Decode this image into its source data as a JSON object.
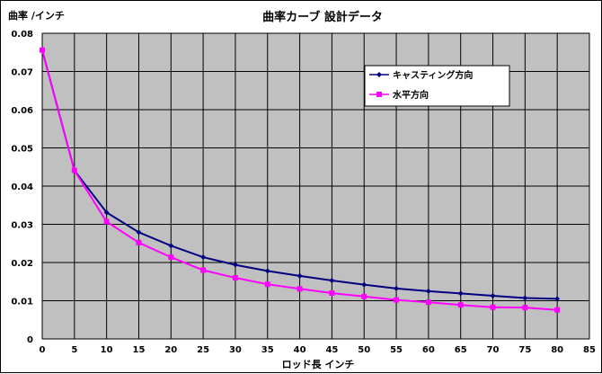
{
  "chart_data": {
    "type": "line",
    "title": "曲率カーブ 設計データ",
    "xlabel": "ロッド長 インチ",
    "ylabel": "曲率 /インチ",
    "xlim": [
      0,
      85
    ],
    "ylim": [
      0,
      0.08
    ],
    "x_ticks": [
      "0",
      "5",
      "10",
      "15",
      "20",
      "25",
      "30",
      "35",
      "40",
      "45",
      "50",
      "55",
      "60",
      "65",
      "70",
      "75",
      "80",
      "85"
    ],
    "y_ticks": [
      "0",
      "0.01",
      "0.02",
      "0.03",
      "0.04",
      "0.05",
      "0.06",
      "0.07",
      "0.08"
    ],
    "grid": true,
    "legend_position": "top-right",
    "series": [
      {
        "name": "キャスティング方向",
        "color": "#000080",
        "marker": "diamond",
        "points": [
          [
            0,
            0.0756
          ],
          [
            5,
            0.0441
          ],
          [
            10,
            0.0331
          ],
          [
            15,
            0.0279
          ],
          [
            20,
            0.0244
          ],
          [
            25,
            0.0214
          ],
          [
            30,
            0.0194
          ],
          [
            35,
            0.0178
          ],
          [
            40,
            0.0165
          ],
          [
            45,
            0.0153
          ],
          [
            50,
            0.0142
          ],
          [
            55,
            0.0132
          ],
          [
            60,
            0.0125
          ],
          [
            65,
            0.0119
          ],
          [
            70,
            0.0113
          ],
          [
            75,
            0.0107
          ],
          [
            80,
            0.0105
          ]
        ]
      },
      {
        "name": "水平方向",
        "color": "#ff00ff",
        "marker": "square",
        "points": [
          [
            0,
            0.0756
          ],
          [
            5,
            0.0441
          ],
          [
            10,
            0.0307
          ],
          [
            15,
            0.0252
          ],
          [
            20,
            0.0214
          ],
          [
            25,
            0.018
          ],
          [
            30,
            0.016
          ],
          [
            35,
            0.0143
          ],
          [
            40,
            0.0131
          ],
          [
            45,
            0.012
          ],
          [
            50,
            0.0111
          ],
          [
            55,
            0.0102
          ],
          [
            60,
            0.0096
          ],
          [
            65,
            0.0089
          ],
          [
            70,
            0.0083
          ],
          [
            75,
            0.0082
          ],
          [
            80,
            0.0076
          ]
        ]
      }
    ]
  }
}
